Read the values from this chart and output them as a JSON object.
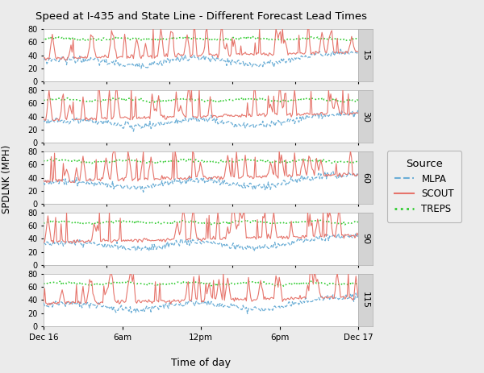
{
  "title": "Speed at I-435 and State Line - Different Forecast Lead Times",
  "xlabel": "Time of day",
  "ylabel": "SPDLNK (MPH)",
  "xtick_labels": [
    "Dec 16",
    "6am",
    "12pm",
    "6pm",
    "Dec 17"
  ],
  "xtick_positions": [
    0.0,
    0.25,
    0.5,
    0.75,
    1.0
  ],
  "panel_labels": [
    "15",
    "30",
    "60",
    "90",
    "115"
  ],
  "ylim": [
    0,
    80
  ],
  "yticks": [
    0,
    20,
    40,
    60,
    80
  ],
  "n_points": 288,
  "scout_color": "#E6746B",
  "mlpa_color": "#6BAED6",
  "treps_color": "#33CC33",
  "background_color": "#EBEBEB",
  "panel_bg": "#FFFFFF",
  "strip_bg": "#D3D3D3",
  "grid_color": "#FFFFFF",
  "legend_entries": [
    "MLPA",
    "SCOUT",
    "TREPS"
  ],
  "legend_title": "Source"
}
